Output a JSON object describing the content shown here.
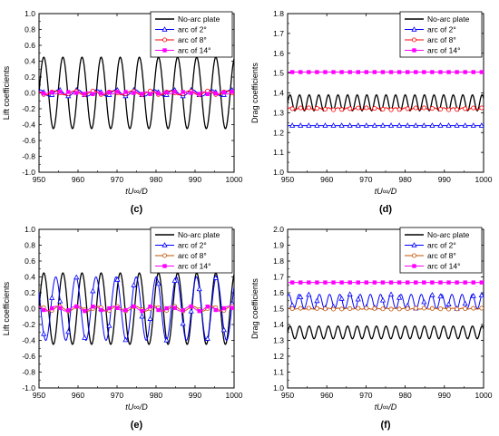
{
  "chart_data": [
    {
      "panel": "(c)",
      "type": "line",
      "xlabel": "tU∞/D",
      "ylabel": "Lift coefficients",
      "xlim": [
        950,
        1000
      ],
      "ylim": [
        -1.0,
        1.0
      ],
      "xticks": [
        950,
        960,
        970,
        980,
        990,
        1000
      ],
      "yticks": [
        -1.0,
        -0.8,
        -0.6,
        -0.4,
        -0.2,
        0.0,
        0.2,
        0.4,
        0.6,
        0.8,
        1.0
      ],
      "ytick_labels": [
        "-1.0",
        "-0.8",
        "-0.6",
        "-0.4",
        "-0.2",
        "0.0",
        "0.2",
        "0.4",
        "0.6",
        "0.8",
        "1.0"
      ],
      "legend_position": "top-right",
      "series": [
        {
          "name": "No-arc plate",
          "color": "#000000",
          "marker": "none",
          "mean": 0.0,
          "amplitude": 0.45,
          "period": 4.9,
          "phase": 0.0
        },
        {
          "name": "arc of 2°",
          "color": "#0000ff",
          "marker": "triangle",
          "mean": 0.0,
          "amplitude": 0.04,
          "period": 4.9,
          "phase": 1.4
        },
        {
          "name": "arc of 8°",
          "color": "#ff0000",
          "marker": "circle",
          "mean": 0.0,
          "amplitude": 0.025,
          "period": 4.9,
          "phase": 2.5
        },
        {
          "name": "arc of 14°",
          "color": "#ff00ff",
          "marker": "square",
          "mean": 0.0,
          "amplitude": 0.015,
          "period": 2.45,
          "phase": 0.5
        }
      ]
    },
    {
      "panel": "(d)",
      "type": "line",
      "xlabel": "tU∞/D",
      "ylabel": "Drag coefficients",
      "xlim": [
        950,
        1000
      ],
      "ylim": [
        1.0,
        1.8
      ],
      "xticks": [
        950,
        960,
        970,
        980,
        990,
        1000
      ],
      "yticks": [
        1.0,
        1.1,
        1.2,
        1.3,
        1.4,
        1.5,
        1.6,
        1.7,
        1.8
      ],
      "ytick_labels": [
        "1.0",
        "1.1",
        "1.2",
        "1.3",
        "1.4",
        "1.5",
        "1.6",
        "1.7",
        "1.8"
      ],
      "legend_position": "top-right",
      "series": [
        {
          "name": "No-arc plate",
          "color": "#000000",
          "marker": "none",
          "mean": 1.35,
          "amplitude": 0.04,
          "period": 2.45,
          "phase": 0.0
        },
        {
          "name": "arc of 2°",
          "color": "#0000ff",
          "marker": "triangle",
          "mean": 1.235,
          "amplitude": 0.0,
          "period": 2.45,
          "phase": 0.0
        },
        {
          "name": "arc of 8°",
          "color": "#ff0000",
          "marker": "circle",
          "mean": 1.32,
          "amplitude": 0.005,
          "period": 2.45,
          "phase": 0.0
        },
        {
          "name": "arc of 14°",
          "color": "#ff00ff",
          "marker": "square",
          "mean": 1.505,
          "amplitude": 0.0,
          "period": 2.45,
          "phase": 0.0
        }
      ]
    },
    {
      "panel": "(e)",
      "type": "line",
      "xlabel": "tU∞/D",
      "ylabel": "Lift coefficients",
      "xlim": [
        950,
        1000
      ],
      "ylim": [
        -1.0,
        1.0
      ],
      "xticks": [
        950,
        960,
        970,
        980,
        990,
        1000
      ],
      "yticks": [
        -1.0,
        -0.8,
        -0.6,
        -0.4,
        -0.2,
        0.0,
        0.2,
        0.4,
        0.6,
        0.8,
        1.0
      ],
      "ytick_labels": [
        "-1.0",
        "-0.8",
        "-0.6",
        "-0.4",
        "-0.2",
        "0.0",
        "0.2",
        "0.4",
        "0.6",
        "0.8",
        "1.0"
      ],
      "legend_position": "top-right",
      "series": [
        {
          "name": "No-arc plate",
          "color": "#000000",
          "marker": "none",
          "mean": 0.0,
          "amplitude": 0.45,
          "period": 4.9,
          "phase": 0.0
        },
        {
          "name": "arc of 2°",
          "color": "#0000ff",
          "marker": "triangle",
          "mean": 0.0,
          "amplitude": 0.4,
          "period": 5.15,
          "phase": 2.6
        },
        {
          "name": "arc of 8°",
          "color": "#c05000",
          "marker": "circle",
          "mean": 0.0,
          "amplitude": 0.03,
          "period": 4.9,
          "phase": 1.2
        },
        {
          "name": "arc of 14°",
          "color": "#ff00ff",
          "marker": "square",
          "mean": 0.0,
          "amplitude": 0.03,
          "period": 4.9,
          "phase": 2.2
        }
      ]
    },
    {
      "panel": "(f)",
      "type": "line",
      "xlabel": "tU∞/D",
      "ylabel": "Drag coefficients",
      "xlim": [
        950,
        1000
      ],
      "ylim": [
        1.0,
        2.0
      ],
      "xticks": [
        950,
        960,
        970,
        980,
        990,
        1000
      ],
      "yticks": [
        1.0,
        1.1,
        1.2,
        1.3,
        1.4,
        1.5,
        1.6,
        1.7,
        1.8,
        1.9,
        2.0
      ],
      "ytick_labels": [
        "1.0",
        "1.1",
        "1.2",
        "1.3",
        "1.4",
        "1.5",
        "1.6",
        "1.7",
        "1.8",
        "1.9",
        "2.0"
      ],
      "legend_position": "top-right",
      "series": [
        {
          "name": "No-arc plate",
          "color": "#000000",
          "marker": "none",
          "mean": 1.35,
          "amplitude": 0.04,
          "period": 2.45,
          "phase": 0.0
        },
        {
          "name": "arc of 2°",
          "color": "#0000ff",
          "marker": "triangle",
          "mean": 1.545,
          "amplitude": 0.045,
          "period": 2.6,
          "phase": 0.8
        },
        {
          "name": "arc of 8°",
          "color": "#c05000",
          "marker": "circle",
          "mean": 1.5,
          "amplitude": 0.003,
          "period": 2.45,
          "phase": 0.0
        },
        {
          "name": "arc of 14°",
          "color": "#ff00ff",
          "marker": "square",
          "mean": 1.665,
          "amplitude": 0.0,
          "period": 2.45,
          "phase": 0.0
        }
      ]
    }
  ]
}
